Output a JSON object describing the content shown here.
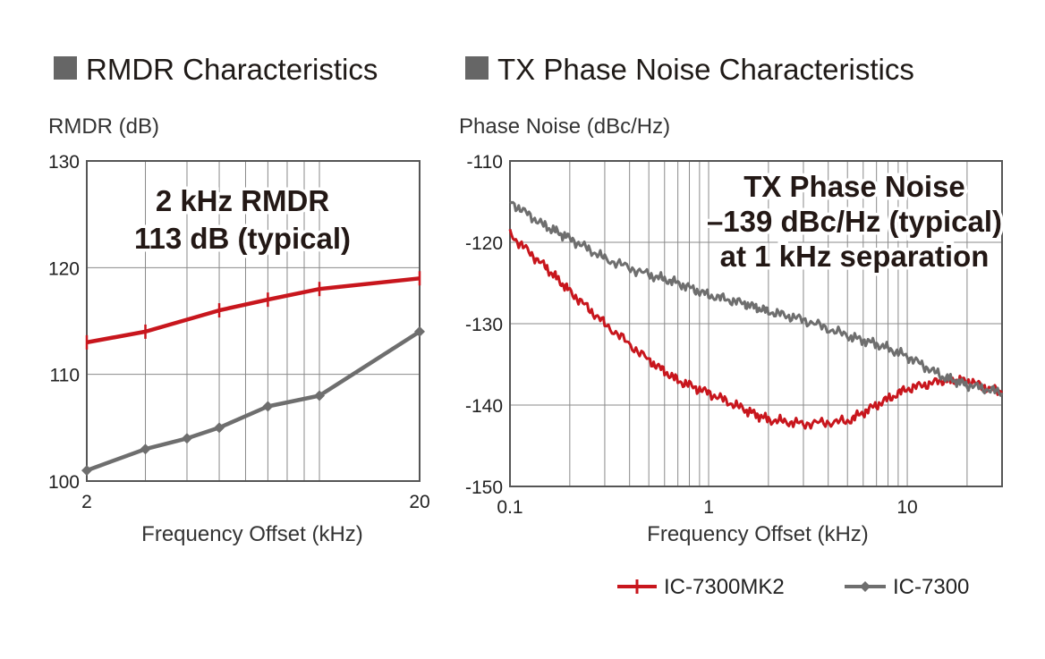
{
  "colors": {
    "mk2": "#c8161d",
    "ic7300": "#6e6e6e",
    "grid": "#8a8a8a",
    "axis": "#555555",
    "square": "#666666"
  },
  "legend": [
    {
      "name": "IC-7300MK2",
      "color": "#c8161d",
      "marker": "plus"
    },
    {
      "name": "IC-7300",
      "color": "#6e6e6e",
      "marker": "diamond"
    }
  ],
  "chart_data": [
    {
      "type": "line",
      "title": "RMDR Characteristics",
      "ylabel": "RMDR (dB)",
      "xlabel": "Frequency Offset (kHz)",
      "xscale": "log",
      "xlim": [
        2,
        20
      ],
      "ylim": [
        100,
        130
      ],
      "xticks": [
        2,
        20
      ],
      "xtick_labels": [
        "2",
        "20"
      ],
      "yticks": [
        100,
        110,
        120,
        130
      ],
      "ytick_labels": [
        "100",
        "110",
        "120",
        "130"
      ],
      "grid": true,
      "annotation": [
        "2 kHz RMDR",
        "113 dB (typical)"
      ],
      "series": [
        {
          "name": "IC-7300MK2",
          "color": "#c8161d",
          "marker": "plus",
          "x": [
            2,
            3,
            5,
            7,
            10,
            20
          ],
          "y": [
            113,
            114,
            116,
            117,
            118,
            119
          ]
        },
        {
          "name": "IC-7300",
          "color": "#6e6e6e",
          "marker": "diamond",
          "x": [
            2,
            3,
            4,
            5,
            7,
            10,
            20
          ],
          "y": [
            101,
            103,
            104,
            105,
            107,
            108,
            114
          ]
        }
      ]
    },
    {
      "type": "line",
      "title": "TX Phase Noise Characteristics",
      "ylabel": "Phase Noise (dBc/Hz)",
      "xlabel": "Frequency Offset (kHz)",
      "xscale": "log",
      "xlim": [
        0.1,
        30
      ],
      "ylim": [
        -150,
        -110
      ],
      "xticks": [
        0.1,
        1,
        10
      ],
      "xtick_labels": [
        "0.1",
        "1",
        "10"
      ],
      "yticks": [
        -150,
        -140,
        -130,
        -120,
        -110
      ],
      "ytick_labels": [
        "-150",
        "-140",
        "-130",
        "-120",
        "-110"
      ],
      "grid": true,
      "annotation": [
        "TX Phase Noise",
        "–139 dBc/Hz (typical)",
        "at 1 kHz separation"
      ],
      "series": [
        {
          "name": "IC-7300MK2",
          "color": "#c8161d",
          "x": [
            0.1,
            0.15,
            0.2,
            0.3,
            0.5,
            0.7,
            1.0,
            1.5,
            2.0,
            3.0,
            5.0,
            7.0,
            10,
            15,
            20,
            30
          ],
          "y": [
            -119,
            -123,
            -126,
            -130,
            -134.5,
            -137,
            -138.5,
            -140.5,
            -141.8,
            -142.3,
            -142,
            -140,
            -138,
            -137,
            -137,
            -138.5
          ]
        },
        {
          "name": "IC-7300",
          "color": "#6e6e6e",
          "x": [
            0.1,
            0.15,
            0.2,
            0.3,
            0.5,
            0.7,
            1.0,
            1.5,
            2.0,
            3.0,
            5.0,
            7.0,
            10,
            15,
            20,
            30
          ],
          "y": [
            -115,
            -118,
            -119.5,
            -122,
            -124,
            -125,
            -126.5,
            -127.5,
            -128.5,
            -129.5,
            -131.5,
            -132.5,
            -134,
            -136.5,
            -137.5,
            -138.5
          ]
        }
      ]
    }
  ]
}
